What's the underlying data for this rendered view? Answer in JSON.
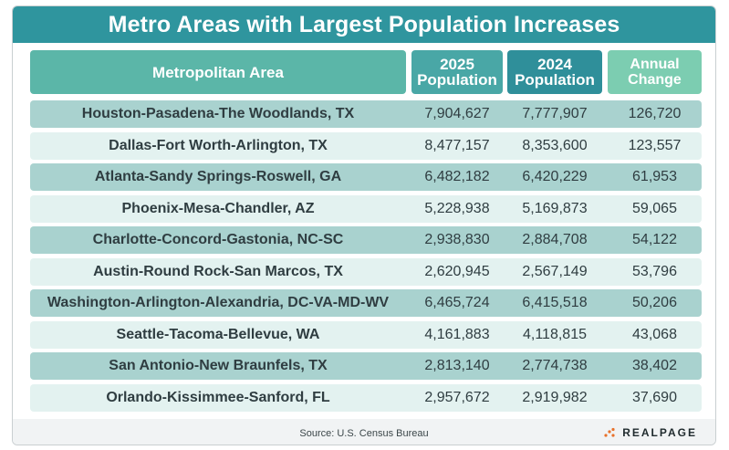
{
  "chart_data": {
    "type": "table",
    "title": "Metro Areas with Largest Population Increases",
    "columns": [
      "Metropolitan Area",
      "2025 Population",
      "2024 Population",
      "Annual Change"
    ],
    "rows": [
      [
        "Houston-Pasadena-The Woodlands, TX",
        "7,904,627",
        "7,777,907",
        "126,720"
      ],
      [
        "Dallas-Fort Worth-Arlington, TX",
        "8,477,157",
        "8,353,600",
        "123,557"
      ],
      [
        "Atlanta-Sandy Springs-Roswell, GA",
        "6,482,182",
        "6,420,229",
        "61,953"
      ],
      [
        "Phoenix-Mesa-Chandler, AZ",
        "5,228,938",
        "5,169,873",
        "59,065"
      ],
      [
        "Charlotte-Concord-Gastonia, NC-SC",
        "2,938,830",
        "2,884,708",
        "54,122"
      ],
      [
        "Austin-Round Rock-San Marcos, TX",
        "2,620,945",
        "2,567,149",
        "53,796"
      ],
      [
        "Washington-Arlington-Alexandria, DC-VA-MD-WV",
        "6,465,724",
        "6,415,518",
        "50,206"
      ],
      [
        "Seattle-Tacoma-Bellevue, WA",
        "4,161,883",
        "4,118,815",
        "43,068"
      ],
      [
        "San Antonio-New Braunfels, TX",
        "2,813,140",
        "2,774,738",
        "38,402"
      ],
      [
        "Orlando-Kissimmee-Sanford, FL",
        "2,957,672",
        "2,919,982",
        "37,690"
      ]
    ]
  },
  "header": {
    "area": "Metropolitan Area",
    "y2025_line1": "2025",
    "y2025_line2": "Population",
    "y2024_line1": "2024",
    "y2024_line2": "Population",
    "change_line1": "Annual",
    "change_line2": "Change"
  },
  "footer": {
    "source": "Source: U.S. Census Bureau",
    "logo": "REALPAGE"
  },
  "colors": {
    "title_bar": "#2f959e",
    "row_dark": "#a9d2cf",
    "row_light": "#e3f2f0",
    "logo_dots": "#e8712b"
  }
}
